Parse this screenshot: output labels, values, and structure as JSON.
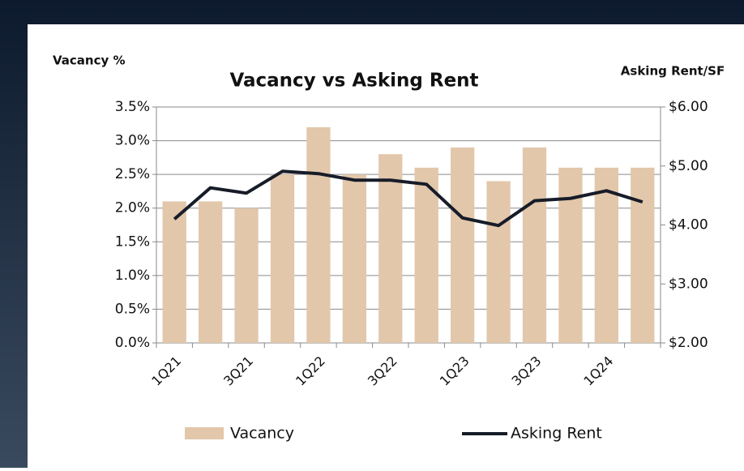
{
  "chart_data": {
    "type": "bar",
    "title": "Vacancy vs Asking Rent",
    "ylabel": "Vacancy %",
    "y2label": "Asking Rent/SF",
    "categories": [
      "1Q21",
      null,
      "3Q21",
      null,
      "1Q22",
      null,
      "3Q22",
      null,
      "1Q23",
      null,
      "3Q23",
      null,
      "1Q24",
      null
    ],
    "series": [
      {
        "name": "Vacancy",
        "type": "bar",
        "color": "#e2c7ab",
        "values": [
          2.1,
          2.1,
          2.0,
          2.5,
          3.2,
          2.5,
          2.8,
          2.6,
          2.9,
          2.4,
          2.9,
          2.6,
          2.6,
          2.6
        ]
      },
      {
        "name": "Asking Rent",
        "type": "line",
        "axis": "y2",
        "color": "#171c28",
        "values": [
          4.1,
          4.63,
          4.54,
          4.91,
          4.87,
          4.76,
          4.76,
          4.69,
          4.12,
          3.99,
          4.41,
          4.45,
          4.58,
          4.39
        ]
      }
    ],
    "ylim": [
      0,
      3.5
    ],
    "yticks": [
      {
        "value": 0,
        "label": "0.0%"
      },
      {
        "value": 0.5,
        "label": "0.5%"
      },
      {
        "value": 1.0,
        "label": "1.0%"
      },
      {
        "value": 1.5,
        "label": "1.5%"
      },
      {
        "value": 2.0,
        "label": "2.0%"
      },
      {
        "value": 2.5,
        "label": "2.5%"
      },
      {
        "value": 3.0,
        "label": "3.0%"
      },
      {
        "value": 3.5,
        "label": "3.5%"
      }
    ],
    "y2lim": [
      2,
      6
    ],
    "y2ticks": [
      {
        "value": 2,
        "label": "$2.00"
      },
      {
        "value": 3,
        "label": "$3.00"
      },
      {
        "value": 4,
        "label": "$4.00"
      },
      {
        "value": 5,
        "label": "$5.00"
      },
      {
        "value": 6,
        "label": "$6.00"
      }
    ],
    "grid": true,
    "legend": "bottom"
  }
}
